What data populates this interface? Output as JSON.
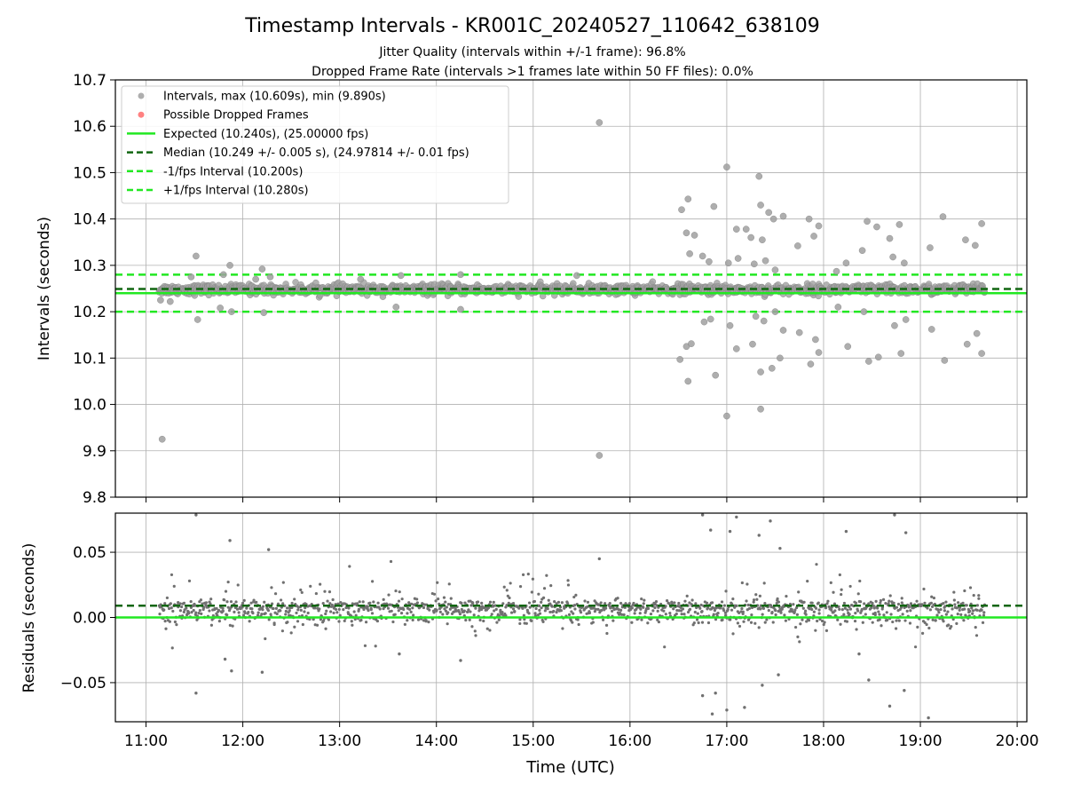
{
  "chart_data": {
    "type": "scatter",
    "title": "Timestamp Intervals - KR001C_20240527_110642_638109",
    "subtitle_1": "Jitter Quality (intervals within +/-1 frame): 96.8%",
    "subtitle_2": "Dropped Frame Rate (intervals >1 frames late within 50 FF files): 0.0%",
    "xlabel": "Time (UTC)",
    "x_ticks": [
      "11:00",
      "12:00",
      "13:00",
      "14:00",
      "15:00",
      "16:00",
      "17:00",
      "18:00",
      "19:00",
      "20:00"
    ],
    "xlim": [
      "10:41",
      "20:06"
    ],
    "grid": true,
    "top_panel": {
      "ylabel": "Intervals (seconds)",
      "ylim": [
        9.8,
        10.7
      ],
      "y_ticks": [
        "9.8",
        "9.9",
        "10.0",
        "10.1",
        "10.2",
        "10.3",
        "10.4",
        "10.5",
        "10.6",
        "10.7"
      ],
      "legend_position": "top-left",
      "legend": [
        {
          "label": "Intervals, max (10.609s), min (9.890s)",
          "style": "marker",
          "color": "#a0a0a0"
        },
        {
          "label": "Possible Dropped Frames",
          "style": "marker",
          "color": "#ff6b6b"
        },
        {
          "label": "Expected (10.240s), (25.00000 fps)",
          "style": "solid",
          "color": "#22e822"
        },
        {
          "label": "Median (10.249 +/- 0.005 s), (24.97814 +/- 0.01 fps)",
          "style": "dashed",
          "color": "#116611"
        },
        {
          "label": "-1/fps Interval (10.200s)",
          "style": "dashed",
          "color": "#22e822"
        },
        {
          "label": "+1/fps Interval (10.280s)",
          "style": "dashed",
          "color": "#22e822"
        }
      ],
      "reference_lines": {
        "expected": 10.24,
        "median": 10.249,
        "minus_1_fps": 10.2,
        "plus_1_fps": 10.28
      },
      "interval_band": {
        "x_start": "11:08",
        "x_end": "19:40",
        "center": 10.248,
        "spread": 0.012,
        "count": 1200
      },
      "outliers": [
        {
          "x": "11:09",
          "y": 10.225
        },
        {
          "x": "11:10",
          "y": 9.925
        },
        {
          "x": "11:15",
          "y": 10.222
        },
        {
          "x": "11:28",
          "y": 10.275
        },
        {
          "x": "11:31",
          "y": 10.32
        },
        {
          "x": "11:32",
          "y": 10.183
        },
        {
          "x": "11:46",
          "y": 10.208
        },
        {
          "x": "11:48",
          "y": 10.28
        },
        {
          "x": "11:52",
          "y": 10.3
        },
        {
          "x": "11:53",
          "y": 10.2
        },
        {
          "x": "12:08",
          "y": 10.27
        },
        {
          "x": "12:12",
          "y": 10.292
        },
        {
          "x": "12:13",
          "y": 10.198
        },
        {
          "x": "12:17",
          "y": 10.275
        },
        {
          "x": "13:13",
          "y": 10.27
        },
        {
          "x": "13:35",
          "y": 10.21
        },
        {
          "x": "13:38",
          "y": 10.278
        },
        {
          "x": "14:15",
          "y": 10.205
        },
        {
          "x": "14:15",
          "y": 10.28
        },
        {
          "x": "15:27",
          "y": 10.278
        },
        {
          "x": "15:41",
          "y": 10.608
        },
        {
          "x": "15:41",
          "y": 9.89
        },
        {
          "x": "16:31",
          "y": 10.097
        },
        {
          "x": "16:32",
          "y": 10.42
        },
        {
          "x": "16:35",
          "y": 10.37
        },
        {
          "x": "16:35",
          "y": 10.125
        },
        {
          "x": "16:36",
          "y": 10.443
        },
        {
          "x": "16:36",
          "y": 10.05
        },
        {
          "x": "16:37",
          "y": 10.325
        },
        {
          "x": "16:38",
          "y": 10.131
        },
        {
          "x": "16:40",
          "y": 10.365
        },
        {
          "x": "16:45",
          "y": 10.32
        },
        {
          "x": "16:46",
          "y": 10.178
        },
        {
          "x": "16:49",
          "y": 10.308
        },
        {
          "x": "16:50",
          "y": 10.184
        },
        {
          "x": "16:52",
          "y": 10.427
        },
        {
          "x": "16:53",
          "y": 10.063
        },
        {
          "x": "17:00",
          "y": 10.512
        },
        {
          "x": "17:00",
          "y": 9.975
        },
        {
          "x": "17:01",
          "y": 10.305
        },
        {
          "x": "17:02",
          "y": 10.17
        },
        {
          "x": "17:06",
          "y": 10.378
        },
        {
          "x": "17:06",
          "y": 10.12
        },
        {
          "x": "17:07",
          "y": 10.315
        },
        {
          "x": "17:12",
          "y": 10.378
        },
        {
          "x": "17:15",
          "y": 10.36
        },
        {
          "x": "17:16",
          "y": 10.13
        },
        {
          "x": "17:17",
          "y": 10.303
        },
        {
          "x": "17:18",
          "y": 10.19
        },
        {
          "x": "17:20",
          "y": 10.492
        },
        {
          "x": "17:21",
          "y": 10.43
        },
        {
          "x": "17:21",
          "y": 10.07
        },
        {
          "x": "17:21",
          "y": 9.99
        },
        {
          "x": "17:22",
          "y": 10.355
        },
        {
          "x": "17:23",
          "y": 10.18
        },
        {
          "x": "17:24",
          "y": 10.31
        },
        {
          "x": "17:26",
          "y": 10.414
        },
        {
          "x": "17:28",
          "y": 10.078
        },
        {
          "x": "17:29",
          "y": 10.4
        },
        {
          "x": "17:30",
          "y": 10.29
        },
        {
          "x": "17:30",
          "y": 10.2
        },
        {
          "x": "17:33",
          "y": 10.1
        },
        {
          "x": "17:35",
          "y": 10.406
        },
        {
          "x": "17:35",
          "y": 10.16
        },
        {
          "x": "17:44",
          "y": 10.342
        },
        {
          "x": "17:45",
          "y": 10.155
        },
        {
          "x": "17:51",
          "y": 10.4
        },
        {
          "x": "17:52",
          "y": 10.087
        },
        {
          "x": "17:54",
          "y": 10.363
        },
        {
          "x": "17:55",
          "y": 10.14
        },
        {
          "x": "17:57",
          "y": 10.385
        },
        {
          "x": "17:57",
          "y": 10.112
        },
        {
          "x": "18:08",
          "y": 10.287
        },
        {
          "x": "18:09",
          "y": 10.21
        },
        {
          "x": "18:14",
          "y": 10.305
        },
        {
          "x": "18:15",
          "y": 10.125
        },
        {
          "x": "18:24",
          "y": 10.332
        },
        {
          "x": "18:25",
          "y": 10.2
        },
        {
          "x": "18:27",
          "y": 10.395
        },
        {
          "x": "18:28",
          "y": 10.093
        },
        {
          "x": "18:33",
          "y": 10.383
        },
        {
          "x": "18:34",
          "y": 10.102
        },
        {
          "x": "18:41",
          "y": 10.358
        },
        {
          "x": "18:43",
          "y": 10.318
        },
        {
          "x": "18:44",
          "y": 10.17
        },
        {
          "x": "18:47",
          "y": 10.388
        },
        {
          "x": "18:48",
          "y": 10.11
        },
        {
          "x": "18:50",
          "y": 10.305
        },
        {
          "x": "18:51",
          "y": 10.183
        },
        {
          "x": "19:06",
          "y": 10.338
        },
        {
          "x": "19:07",
          "y": 10.162
        },
        {
          "x": "19:14",
          "y": 10.405
        },
        {
          "x": "19:15",
          "y": 10.095
        },
        {
          "x": "19:28",
          "y": 10.355
        },
        {
          "x": "19:29",
          "y": 10.13
        },
        {
          "x": "19:34",
          "y": 10.343
        },
        {
          "x": "19:35",
          "y": 10.153
        },
        {
          "x": "19:38",
          "y": 10.39
        },
        {
          "x": "19:38",
          "y": 10.11
        }
      ]
    },
    "bottom_panel": {
      "ylabel": "Residuals (seconds)",
      "ylim": [
        -0.08,
        0.08
      ],
      "y_ticks": [
        "−0.05",
        "0.00",
        "0.05"
      ],
      "expected_line": 0.0,
      "median_line": 0.009,
      "residual_band": {
        "x_start": "11:08",
        "x_end": "19:40",
        "center": 0.008,
        "spread": 0.012,
        "count": 1400
      },
      "outliers": [
        {
          "x": "11:31",
          "y": 0.08
        },
        {
          "x": "11:31",
          "y": -0.058
        },
        {
          "x": "11:49",
          "y": -0.032
        },
        {
          "x": "11:52",
          "y": 0.059
        },
        {
          "x": "11:53",
          "y": -0.041
        },
        {
          "x": "12:12",
          "y": -0.042
        },
        {
          "x": "12:16",
          "y": 0.052
        },
        {
          "x": "13:37",
          "y": -0.028
        },
        {
          "x": "14:15",
          "y": -0.033
        },
        {
          "x": "15:41",
          "y": 0.045
        },
        {
          "x": "16:45",
          "y": -0.06
        },
        {
          "x": "16:45",
          "y": 0.08
        },
        {
          "x": "16:50",
          "y": 0.067
        },
        {
          "x": "16:51",
          "y": -0.074
        },
        {
          "x": "16:53",
          "y": -0.058
        },
        {
          "x": "17:00",
          "y": -0.071
        },
        {
          "x": "17:02",
          "y": 0.066
        },
        {
          "x": "17:06",
          "y": 0.077
        },
        {
          "x": "17:11",
          "y": -0.069
        },
        {
          "x": "17:20",
          "y": 0.063
        },
        {
          "x": "17:22",
          "y": -0.052
        },
        {
          "x": "17:27",
          "y": 0.074
        },
        {
          "x": "17:32",
          "y": -0.044
        },
        {
          "x": "17:33",
          "y": 0.053
        },
        {
          "x": "18:14",
          "y": 0.066
        },
        {
          "x": "18:22",
          "y": -0.028
        },
        {
          "x": "18:28",
          "y": -0.048
        },
        {
          "x": "18:41",
          "y": -0.068
        },
        {
          "x": "18:44",
          "y": 0.08
        },
        {
          "x": "18:50",
          "y": -0.056
        },
        {
          "x": "18:51",
          "y": 0.065
        },
        {
          "x": "19:05",
          "y": -0.077
        }
      ]
    }
  }
}
